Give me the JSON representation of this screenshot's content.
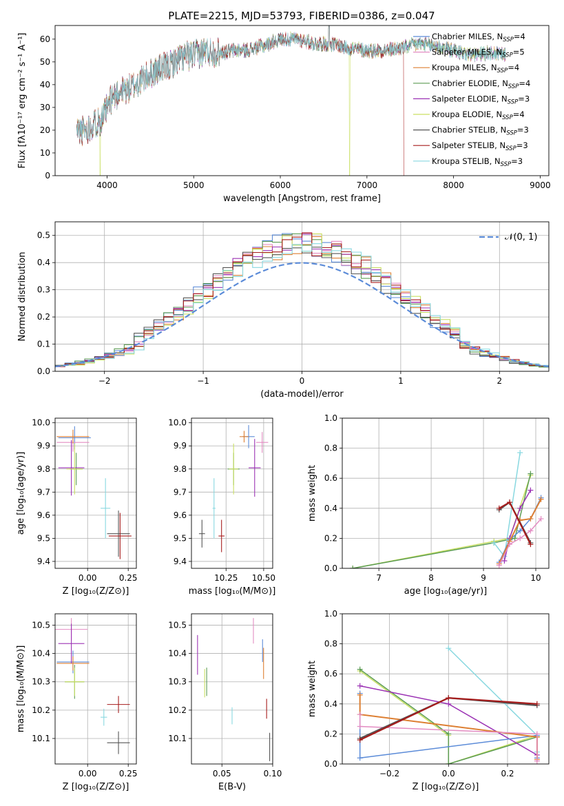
{
  "figure_title": "PLATE=2215, MJD=53793, FIBERID=0386, z=0.047",
  "models": [
    {
      "name": "Chabrier MILES",
      "nssp": "4",
      "color": "#5b8bd8"
    },
    {
      "name": "Salpeter MILES",
      "nssp": "5",
      "color": "#e38cc2"
    },
    {
      "name": "Kroupa MILES",
      "nssp": "4",
      "color": "#dd7f32"
    },
    {
      "name": "Chabrier ELODIE",
      "nssp": "4",
      "color": "#5c9c54"
    },
    {
      "name": "Salpeter ELODIE",
      "nssp": "3",
      "color": "#9b32b4"
    },
    {
      "name": "Kroupa ELODIE",
      "nssp": "4",
      "color": "#c9df62"
    },
    {
      "name": "Chabrier STELIB",
      "nssp": "3",
      "color": "#555555"
    },
    {
      "name": "Salpeter STELIB",
      "nssp": "3",
      "color": "#a61c1c"
    },
    {
      "name": "Kroupa STELIB",
      "nssp": "3",
      "color": "#88d8e0"
    }
  ],
  "nssp_prefix": "N",
  "nssp_sub": "SSP",
  "chart_data": [
    {
      "id": "spectrum",
      "type": "line",
      "xlabel": "wavelength [Angstrom, rest frame]",
      "ylabel": "Flux [fλ10⁻¹⁷ erg cm⁻² s⁻¹ A⁻¹]",
      "xlim": [
        3400,
        9100
      ],
      "ylim": [
        0,
        66
      ],
      "xticks": [
        "4000",
        "5000",
        "6000",
        "7000",
        "8000",
        "9000"
      ],
      "yticks": [
        "0",
        "10",
        "20",
        "30",
        "40",
        "50",
        "60"
      ],
      "grid": false,
      "legend": "right",
      "continuum": {
        "x": [
          3650,
          3750,
          3850,
          3950,
          4050,
          4150,
          4250,
          4400,
          4550,
          4700,
          4850,
          5000,
          5150,
          5300,
          5450,
          5600,
          5800,
          6000,
          6200,
          6400,
          6600,
          6800,
          7000,
          7200,
          7400,
          7600,
          7800,
          8000,
          8200,
          8400,
          8600
        ],
        "y": [
          20,
          20,
          23,
          25,
          34,
          37,
          38,
          42,
          46,
          48,
          52,
          53,
          55,
          54,
          55,
          55,
          57,
          60,
          60,
          58,
          58,
          56,
          55,
          55,
          56,
          58,
          57,
          55,
          53,
          54,
          53
        ]
      },
      "cutoffs": [
        {
          "model": "Kroupa ELODIE",
          "x": 3920
        },
        {
          "model": "Kroupa ELODIE",
          "x": 6800
        },
        {
          "model": "Salpeter STELIB",
          "x": 7430
        }
      ]
    },
    {
      "id": "residuals",
      "type": "histogram",
      "xlabel": "(data-model)/error",
      "ylabel": "Normed distribution",
      "xlim": [
        -2.5,
        2.5
      ],
      "ylim": [
        0,
        0.55
      ],
      "xticks": [
        "−2",
        "−1",
        "0",
        "1",
        "2"
      ],
      "yticks": [
        "0.0",
        "0.1",
        "0.2",
        "0.3",
        "0.4",
        "0.5"
      ],
      "grid": true,
      "legend": "top-right",
      "curve_label": "𝒩(0, 1)",
      "curve_color": "#5b8bd8",
      "bin_width": 0.1,
      "bin_start": -2.5
    },
    {
      "id": "Z-age",
      "type": "errorbar",
      "xlabel": "Z [log₁₀(Z/Z⊙)]",
      "ylabel": "age  [log₁₀(age/yr)]",
      "xlim": [
        -0.2,
        0.3
      ],
      "ylim": [
        9.37,
        10.02
      ],
      "xticks": [
        "0.00",
        "0.25"
      ],
      "yticks": [
        "9.4",
        "9.5",
        "9.6",
        "9.7",
        "9.8",
        "9.9",
        "10.0"
      ],
      "points": [
        {
          "model": "Chabrier MILES",
          "x": -0.08,
          "xerr": 0.1,
          "y": 9.935,
          "yerr": 0.05
        },
        {
          "model": "Salpeter MILES",
          "x": -0.09,
          "xerr": 0.1,
          "y": 9.915,
          "yerr": 0.04
        },
        {
          "model": "Kroupa MILES",
          "x": -0.09,
          "xerr": 0.1,
          "y": 9.94,
          "yerr": 0.03
        },
        {
          "model": "Chabrier ELODIE",
          "x": -0.07,
          "xerr": 0.04,
          "y": 9.8,
          "yerr": 0.07
        },
        {
          "model": "Salpeter ELODIE",
          "x": -0.1,
          "xerr": 0.08,
          "y": 9.805,
          "yerr": 0.12
        },
        {
          "model": "Kroupa ELODIE",
          "x": -0.08,
          "xerr": 0.05,
          "y": 9.8,
          "yerr": 0.11
        },
        {
          "model": "Chabrier STELIB",
          "x": 0.19,
          "xerr": 0.07,
          "y": 9.52,
          "yerr": 0.1
        },
        {
          "model": "Salpeter STELIB",
          "x": 0.2,
          "xerr": 0.07,
          "y": 9.51,
          "yerr": 0.1
        },
        {
          "model": "Kroupa STELIB",
          "x": 0.11,
          "xerr": 0.03,
          "y": 9.63,
          "yerr": 0.13
        }
      ]
    },
    {
      "id": "mass-age",
      "type": "errorbar",
      "xlabel": "mass [log₁₀(M/M⊙)]",
      "ylabel": "",
      "xlim": [
        10.02,
        10.56
      ],
      "ylim": [
        9.37,
        10.02
      ],
      "xticks": [
        "10.25",
        "10.50"
      ],
      "yticks": [
        "9.4",
        "9.5",
        "9.6",
        "9.7",
        "9.8",
        "9.9",
        "10.0"
      ],
      "points": [
        {
          "model": "Chabrier MILES",
          "x": 10.4,
          "xerr": 0.04,
          "y": 9.94,
          "yerr": 0.05
        },
        {
          "model": "Salpeter MILES",
          "x": 10.49,
          "xerr": 0.04,
          "y": 9.915,
          "yerr": 0.045
        },
        {
          "model": "Kroupa MILES",
          "x": 10.37,
          "xerr": 0.03,
          "y": 9.94,
          "yerr": 0.025
        },
        {
          "model": "Chabrier ELODIE",
          "x": 10.3,
          "xerr": 0.04,
          "y": 9.8,
          "yerr": 0.07
        },
        {
          "model": "Salpeter ELODIE",
          "x": 10.44,
          "xerr": 0.04,
          "y": 9.805,
          "yerr": 0.125
        },
        {
          "model": "Kroupa ELODIE",
          "x": 10.3,
          "xerr": 0.03,
          "y": 9.8,
          "yerr": 0.11
        },
        {
          "model": "Chabrier STELIB",
          "x": 10.09,
          "xerr": 0.02,
          "y": 9.52,
          "yerr": 0.06
        },
        {
          "model": "Salpeter STELIB",
          "x": 10.22,
          "xerr": 0.02,
          "y": 9.51,
          "yerr": 0.07
        },
        {
          "model": "Kroupa STELIB",
          "x": 10.17,
          "xerr": 0.01,
          "y": 9.63,
          "yerr": 0.13
        }
      ]
    },
    {
      "id": "age-weight",
      "type": "line",
      "xlabel": "age  [log₁₀(age/yr)]",
      "ylabel": "mass weight",
      "xlim": [
        6.3,
        10.25
      ],
      "ylim": [
        0,
        1.0
      ],
      "xticks": [
        "7",
        "8",
        "9",
        "10"
      ],
      "yticks": [
        "0.0",
        "0.2",
        "0.4",
        "0.6",
        "0.8",
        "1.0"
      ],
      "series": [
        {
          "model": "Kroupa ELODIE",
          "x": [
            6.5,
            9.2,
            9.5,
            9.9
          ],
          "y": [
            0.0,
            0.18,
            0.2,
            0.62
          ]
        },
        {
          "model": "Chabrier ELODIE",
          "x": [
            6.5,
            9.2,
            9.6,
            9.9
          ],
          "y": [
            0.0,
            0.17,
            0.2,
            0.63
          ]
        },
        {
          "model": "Kroupa STELIB",
          "x": [
            9.2,
            9.4,
            9.7
          ],
          "y": [
            0.17,
            0.08,
            0.77
          ]
        },
        {
          "model": "Salpeter ELODIE",
          "x": [
            9.4,
            9.5,
            9.7,
            9.9
          ],
          "y": [
            0.05,
            0.2,
            0.4,
            0.52
          ]
        },
        {
          "model": "Chabrier MILES",
          "x": [
            9.3,
            9.5,
            9.7,
            9.9,
            10.1
          ],
          "y": [
            0.04,
            0.19,
            0.25,
            0.33,
            0.47
          ]
        },
        {
          "model": "Kroupa MILES",
          "x": [
            9.3,
            9.5,
            9.7,
            9.9,
            10.1
          ],
          "y": [
            0.03,
            0.18,
            0.32,
            0.33,
            0.46
          ]
        },
        {
          "model": "Salpeter MILES",
          "x": [
            9.3,
            9.5,
            9.7,
            9.9,
            10.1
          ],
          "y": [
            0.02,
            0.16,
            0.2,
            0.25,
            0.33
          ]
        },
        {
          "model": "Chabrier STELIB",
          "x": [
            9.3,
            9.5,
            9.9
          ],
          "y": [
            0.39,
            0.44,
            0.17
          ]
        },
        {
          "model": "Salpeter STELIB",
          "x": [
            9.3,
            9.5,
            9.9
          ],
          "y": [
            0.4,
            0.44,
            0.16
          ]
        }
      ]
    },
    {
      "id": "Z-mass",
      "type": "errorbar",
      "xlabel": "Z [log₁₀(Z/Z⊙)]",
      "ylabel": "mass [log₁₀(M/M⊙)]",
      "xlim": [
        -0.2,
        0.3
      ],
      "ylim": [
        10.01,
        10.54
      ],
      "xticks": [
        "0.00",
        "0.25"
      ],
      "yticks": [
        "10.1",
        "10.2",
        "10.3",
        "10.4",
        "10.5"
      ],
      "points": [
        {
          "model": "Chabrier MILES",
          "x": -0.09,
          "xerr": 0.1,
          "y": 10.37,
          "yerr": 0.04
        },
        {
          "model": "Salpeter MILES",
          "x": -0.1,
          "xerr": 0.1,
          "y": 10.485,
          "yerr": 0.04
        },
        {
          "model": "Kroupa MILES",
          "x": -0.09,
          "xerr": 0.1,
          "y": 10.365,
          "yerr": 0.025
        },
        {
          "model": "Chabrier ELODIE",
          "x": -0.08,
          "xerr": 0.06,
          "y": 10.3,
          "yerr": 0.06
        },
        {
          "model": "Salpeter ELODIE",
          "x": -0.1,
          "xerr": 0.08,
          "y": 10.435,
          "yerr": 0.07
        },
        {
          "model": "Kroupa ELODIE",
          "x": -0.08,
          "xerr": 0.06,
          "y": 10.3,
          "yerr": 0.05
        },
        {
          "model": "Chabrier STELIB",
          "x": 0.19,
          "xerr": 0.07,
          "y": 10.085,
          "yerr": 0.04
        },
        {
          "model": "Salpeter STELIB",
          "x": 0.19,
          "xerr": 0.07,
          "y": 10.22,
          "yerr": 0.03
        },
        {
          "model": "Kroupa STELIB",
          "x": 0.1,
          "xerr": 0.02,
          "y": 10.175,
          "yerr": 0.03
        }
      ]
    },
    {
      "id": "ebv-mass",
      "type": "errorbar",
      "xlabel": "E(B-V)",
      "ylabel": "",
      "xlim": [
        0.02,
        0.1
      ],
      "ylim": [
        10.01,
        10.54
      ],
      "xticks": [
        "0.05",
        "0.10"
      ],
      "yticks": [
        "10.1",
        "10.2",
        "10.3",
        "10.4",
        "10.5"
      ],
      "points": [
        {
          "model": "Chabrier MILES",
          "x": 0.09,
          "xerr": 0,
          "y": 10.41,
          "yerr": 0.04
        },
        {
          "model": "Salpeter MILES",
          "x": 0.081,
          "xerr": 0,
          "y": 10.48,
          "yerr": 0.045
        },
        {
          "model": "Kroupa MILES",
          "x": 0.091,
          "xerr": 0,
          "y": 10.365,
          "yerr": 0.055
        },
        {
          "model": "Chabrier ELODIE",
          "x": 0.035,
          "xerr": 0,
          "y": 10.3,
          "yerr": 0.05
        },
        {
          "model": "Salpeter ELODIE",
          "x": 0.026,
          "xerr": 0,
          "y": 10.395,
          "yerr": 0.07
        },
        {
          "model": "Kroupa ELODIE",
          "x": 0.033,
          "xerr": 0,
          "y": 10.295,
          "yerr": 0.05
        },
        {
          "model": "Chabrier STELIB",
          "x": 0.097,
          "xerr": 0,
          "y": 10.07,
          "yerr": 0.05
        },
        {
          "model": "Salpeter STELIB",
          "x": 0.094,
          "xerr": 0,
          "y": 10.205,
          "yerr": 0.035
        },
        {
          "model": "Kroupa STELIB",
          "x": 0.06,
          "xerr": 0,
          "y": 10.18,
          "yerr": 0.03
        }
      ]
    },
    {
      "id": "Z-weight",
      "type": "line",
      "xlabel": "Z [log₁₀(Z/Z⊙)]",
      "ylabel": "mass weight",
      "xlim": [
        -0.36,
        0.34
      ],
      "ylim": [
        0,
        1.0
      ],
      "xticks": [
        "−0.2",
        "0.0",
        "0.2"
      ],
      "yticks": [
        "0.0",
        "0.2",
        "0.4",
        "0.6",
        "0.8",
        "1.0"
      ],
      "series": [
        {
          "model": "Kroupa ELODIE",
          "x": [
            -0.3,
            0.0,
            0.0,
            0.3
          ],
          "y": [
            0.62,
            0.19,
            0.0,
            0.19
          ]
        },
        {
          "model": "Chabrier ELODIE",
          "x": [
            -0.3,
            0.0,
            0.0,
            0.3
          ],
          "y": [
            0.63,
            0.2,
            0.0,
            0.18
          ]
        },
        {
          "model": "Kroupa STELIB",
          "x": [
            0.0,
            0.3,
            0.3
          ],
          "y": [
            0.77,
            0.19,
            0.08
          ]
        },
        {
          "model": "Salpeter ELODIE",
          "x": [
            -0.3,
            0.0,
            0.3
          ],
          "y": [
            0.52,
            0.4,
            0.06
          ]
        },
        {
          "model": "Chabrier MILES",
          "x": [
            -0.3,
            -0.3,
            0.3,
            0.3
          ],
          "y": [
            0.47,
            0.04,
            0.19,
            0.04
          ]
        },
        {
          "model": "Kroupa MILES",
          "x": [
            -0.3,
            -0.3,
            0.3,
            0.3
          ],
          "y": [
            0.46,
            0.33,
            0.18,
            0.03
          ]
        },
        {
          "model": "Salpeter MILES",
          "x": [
            -0.3,
            -0.3,
            0.3,
            0.3
          ],
          "y": [
            0.33,
            0.25,
            0.2,
            0.02
          ]
        },
        {
          "model": "Chabrier STELIB",
          "x": [
            -0.3,
            0.0,
            0.3
          ],
          "y": [
            0.17,
            0.44,
            0.39
          ]
        },
        {
          "model": "Salpeter STELIB",
          "x": [
            -0.3,
            0.0,
            0.3
          ],
          "y": [
            0.16,
            0.44,
            0.4
          ]
        }
      ]
    }
  ]
}
